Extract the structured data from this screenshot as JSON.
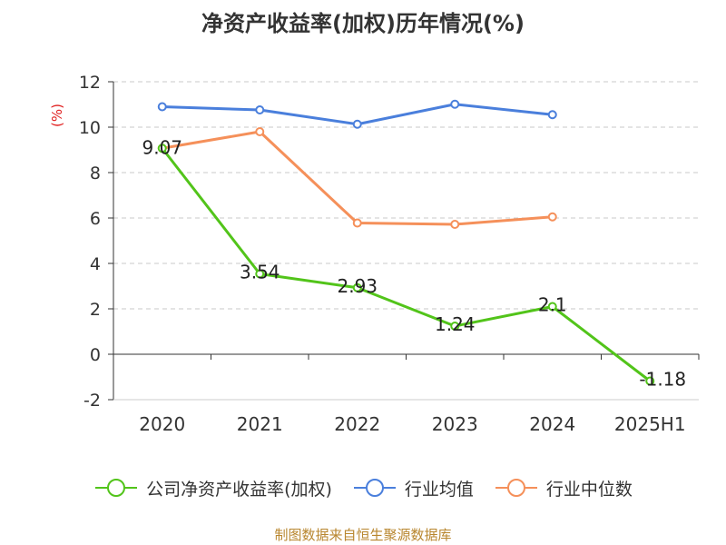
{
  "title": "净资产收益率(加权)历年情况(%)",
  "footer": "制图数据来自恒生聚源数据库",
  "chart_data": {
    "type": "line",
    "title": "净资产收益率(加权)历年情况(%)",
    "ylabel": "(%)",
    "xlabel": "",
    "categories": [
      "2020",
      "2021",
      "2022",
      "2023",
      "2024",
      "2025H1"
    ],
    "ylim": [
      -2,
      12
    ],
    "yticks": [
      -2,
      0,
      2,
      4,
      6,
      8,
      10,
      12
    ],
    "grid": true,
    "legend_position": "bottom",
    "series": [
      {
        "name": "公司净资产收益率(加权)",
        "color": "#52c41a",
        "values": [
          9.07,
          3.54,
          2.93,
          1.24,
          2.1,
          -1.18
        ],
        "data_labels": [
          "9.07",
          "3.54",
          "2.93",
          "1.24",
          "2.1",
          "-1.18"
        ]
      },
      {
        "name": "行业均值",
        "color": "#4a7fdc",
        "values": [
          10.9,
          10.76,
          10.13,
          11.01,
          10.55,
          null
        ],
        "data_labels": null
      },
      {
        "name": "行业中位数",
        "color": "#f5905a",
        "values": [
          9.07,
          9.8,
          5.78,
          5.72,
          6.05,
          null
        ],
        "data_labels": null
      }
    ]
  }
}
